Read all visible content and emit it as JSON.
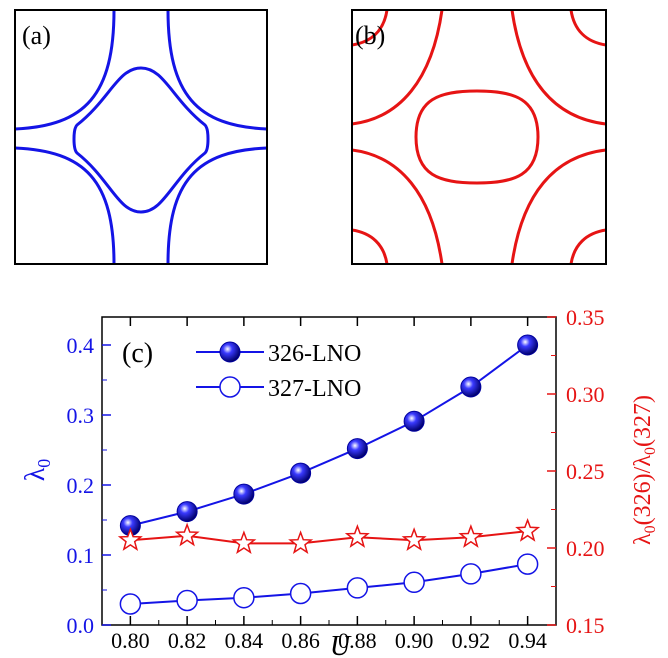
{
  "panels": {
    "a": {
      "label": "(a)",
      "color": "#1414e6"
    },
    "b": {
      "label": "(b)",
      "color": "#e61414"
    }
  },
  "chart_data": {
    "type": "line",
    "panel_label": "(c)",
    "xlabel": "U",
    "ylabel_left": "λ0",
    "ylabel_right": "λ0(326)/λ0(327)",
    "x": [
      0.8,
      0.82,
      0.84,
      0.86,
      0.88,
      0.9,
      0.92,
      0.94
    ],
    "x_ticks": [
      "0.80",
      "0.82",
      "0.84",
      "0.86",
      "0.88",
      "0.90",
      "0.92",
      "0.94"
    ],
    "xlim": [
      0.79,
      0.95
    ],
    "ylim_left": [
      0.0,
      0.44
    ],
    "ylim_right": [
      0.15,
      0.35
    ],
    "y_ticks_left": [
      "0.0",
      "0.1",
      "0.2",
      "0.3",
      "0.4"
    ],
    "y_ticks_right": [
      "0.15",
      "0.20",
      "0.25",
      "0.30",
      "0.35"
    ],
    "legend_placement": "top-left",
    "series": [
      {
        "name": "326-LNO",
        "axis": "left",
        "marker": "filled-circle",
        "color": "#1414e6",
        "values": [
          0.142,
          0.162,
          0.187,
          0.217,
          0.252,
          0.291,
          0.34,
          0.4
        ]
      },
      {
        "name": "327-LNO",
        "axis": "left",
        "marker": "open-circle",
        "color": "#1414e6",
        "values": [
          0.03,
          0.035,
          0.039,
          0.045,
          0.053,
          0.061,
          0.073,
          0.087
        ]
      },
      {
        "name": "",
        "axis": "right",
        "marker": "open-star",
        "color": "#e61414",
        "values": [
          0.205,
          0.208,
          0.203,
          0.203,
          0.207,
          0.205,
          0.207,
          0.211
        ]
      }
    ],
    "colors": {
      "left_axis": "#1414e6",
      "right_axis": "#e61414"
    }
  }
}
